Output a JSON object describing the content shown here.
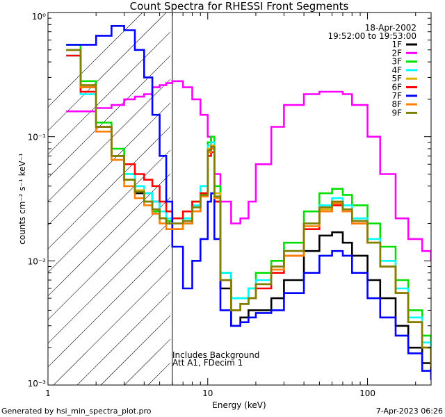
{
  "chart_data": {
    "type": "line",
    "title": "Count Spectra for RHESSI Front Segments",
    "xlabel": "Energy (keV)",
    "ylabel": "counts cm⁻² s⁻¹ keV⁻¹",
    "xscale": "log",
    "yscale": "log",
    "xlim": [
      1,
      250
    ],
    "ylim": [
      0.001,
      1
    ],
    "x_ticks": [
      {
        "value": 1,
        "label": "1"
      },
      {
        "value": 10,
        "label": "10"
      },
      {
        "value": 100,
        "label": "100"
      }
    ],
    "y_ticks": [
      {
        "value": 1,
        "label": "10⁰"
      },
      {
        "value": 0.1,
        "label": "10⁻¹"
      },
      {
        "value": 0.01,
        "label": "10⁻²"
      },
      {
        "value": 0.001,
        "label": "10⁻³"
      }
    ],
    "date": "18-Apr-2002",
    "time_range": "19:52:00 to 19:53:00",
    "attenuator_boundary_kev": 6,
    "annotations": [
      "Includes Background",
      "Att A1, FDecim 1"
    ],
    "footer_left": "Generated by hsi_min_spectra_plot.pro",
    "footer_right": "7-Apr-2023 06:26",
    "x": [
      1.3,
      1.6,
      2.0,
      2.5,
      3.0,
      3.5,
      4.0,
      4.5,
      5.0,
      5.5,
      6.0,
      7.0,
      8.0,
      9.0,
      10.0,
      10.5,
      11.0,
      12.0,
      14.0,
      16.0,
      18.0,
      20.0,
      25.0,
      30.0,
      40.0,
      50.0,
      60.0,
      70.0,
      80.0,
      100.0,
      120.0,
      150.0,
      180.0,
      220.0,
      250.0
    ],
    "series": [
      {
        "name": "1F",
        "color": "#000000",
        "values": [
          0.5,
          0.25,
          0.12,
          0.07,
          0.045,
          0.035,
          0.035,
          0.03,
          0.022,
          0.02,
          0.018,
          0.02,
          0.025,
          0.035,
          0.075,
          0.08,
          0.03,
          0.006,
          0.003,
          0.0035,
          0.004,
          0.004,
          0.005,
          0.007,
          0.012,
          0.016,
          0.017,
          0.014,
          0.011,
          0.007,
          0.005,
          0.003,
          0.002,
          0.0015,
          0.0012
        ]
      },
      {
        "name": "2F",
        "color": "#ff00ff",
        "values": [
          0.16,
          0.16,
          0.17,
          0.18,
          0.2,
          0.21,
          0.22,
          0.25,
          0.26,
          0.27,
          0.28,
          0.25,
          0.2,
          0.15,
          0.1,
          0.08,
          0.05,
          0.03,
          0.02,
          0.022,
          0.03,
          0.06,
          0.12,
          0.18,
          0.22,
          0.23,
          0.23,
          0.22,
          0.18,
          0.1,
          0.05,
          0.022,
          0.015,
          0.012,
          0.01
        ]
      },
      {
        "name": "3F",
        "color": "#00e000",
        "values": [
          0.55,
          0.28,
          0.13,
          0.08,
          0.05,
          0.04,
          0.03,
          0.025,
          0.022,
          0.021,
          0.022,
          0.022,
          0.03,
          0.04,
          0.09,
          0.1,
          0.04,
          0.008,
          0.005,
          0.005,
          0.006,
          0.008,
          0.01,
          0.014,
          0.025,
          0.035,
          0.038,
          0.034,
          0.028,
          0.02,
          0.013,
          0.007,
          0.004,
          0.0025,
          0.0015
        ]
      },
      {
        "name": "4F",
        "color": "#00ffff",
        "values": [
          0.45,
          0.22,
          0.12,
          0.07,
          0.05,
          0.04,
          0.035,
          0.03,
          0.025,
          0.022,
          0.02,
          0.022,
          0.028,
          0.04,
          0.085,
          0.09,
          0.035,
          0.008,
          0.005,
          0.005,
          0.006,
          0.007,
          0.009,
          0.012,
          0.02,
          0.028,
          0.032,
          0.028,
          0.022,
          0.015,
          0.01,
          0.006,
          0.0035,
          0.0022,
          0.0015
        ]
      },
      {
        "name": "5F",
        "color": "#e0b000",
        "values": [
          0.5,
          0.26,
          0.12,
          0.07,
          0.045,
          0.037,
          0.03,
          0.026,
          0.022,
          0.02,
          0.02,
          0.021,
          0.027,
          0.035,
          0.08,
          0.085,
          0.035,
          0.007,
          0.004,
          0.0045,
          0.005,
          0.0065,
          0.009,
          0.012,
          0.02,
          0.026,
          0.03,
          0.026,
          0.02,
          0.014,
          0.009,
          0.0055,
          0.0032,
          0.002,
          0.0014
        ]
      },
      {
        "name": "6F",
        "color": "#ff0000",
        "values": [
          0.45,
          0.23,
          0.12,
          0.07,
          0.06,
          0.05,
          0.045,
          0.04,
          0.03,
          0.025,
          0.022,
          0.025,
          0.03,
          0.035,
          0.07,
          0.075,
          0.03,
          0.007,
          0.004,
          0.0045,
          0.005,
          0.006,
          0.008,
          0.011,
          0.018,
          0.025,
          0.028,
          0.025,
          0.02,
          0.014,
          0.009,
          0.0055,
          0.0032,
          0.002,
          0.0014
        ]
      },
      {
        "name": "7F",
        "color": "#0000ff",
        "values": [
          0.55,
          0.55,
          0.65,
          0.78,
          0.72,
          0.5,
          0.3,
          0.15,
          0.07,
          0.03,
          0.013,
          0.006,
          0.01,
          0.015,
          0.03,
          0.035,
          0.015,
          0.004,
          0.003,
          0.0032,
          0.0035,
          0.0038,
          0.004,
          0.0055,
          0.008,
          0.011,
          0.012,
          0.011,
          0.008,
          0.005,
          0.0035,
          0.0025,
          0.0018,
          0.0013,
          0.0011
        ]
      },
      {
        "name": "8F",
        "color": "#ff8000",
        "values": [
          0.5,
          0.25,
          0.11,
          0.065,
          0.04,
          0.032,
          0.028,
          0.024,
          0.02,
          0.018,
          0.018,
          0.02,
          0.025,
          0.033,
          0.075,
          0.08,
          0.032,
          0.007,
          0.004,
          0.0045,
          0.005,
          0.0065,
          0.0085,
          0.011,
          0.019,
          0.025,
          0.029,
          0.025,
          0.02,
          0.014,
          0.009,
          0.0055,
          0.0032,
          0.002,
          0.0014
        ]
      },
      {
        "name": "9F",
        "color": "#808000",
        "values": [
          0.5,
          0.26,
          0.12,
          0.07,
          0.045,
          0.036,
          0.03,
          0.026,
          0.022,
          0.02,
          0.02,
          0.021,
          0.027,
          0.034,
          0.078,
          0.083,
          0.033,
          0.007,
          0.004,
          0.0045,
          0.005,
          0.0065,
          0.009,
          0.012,
          0.02,
          0.027,
          0.03,
          0.026,
          0.021,
          0.014,
          0.009,
          0.0055,
          0.0032,
          0.002,
          0.0014
        ]
      }
    ]
  }
}
